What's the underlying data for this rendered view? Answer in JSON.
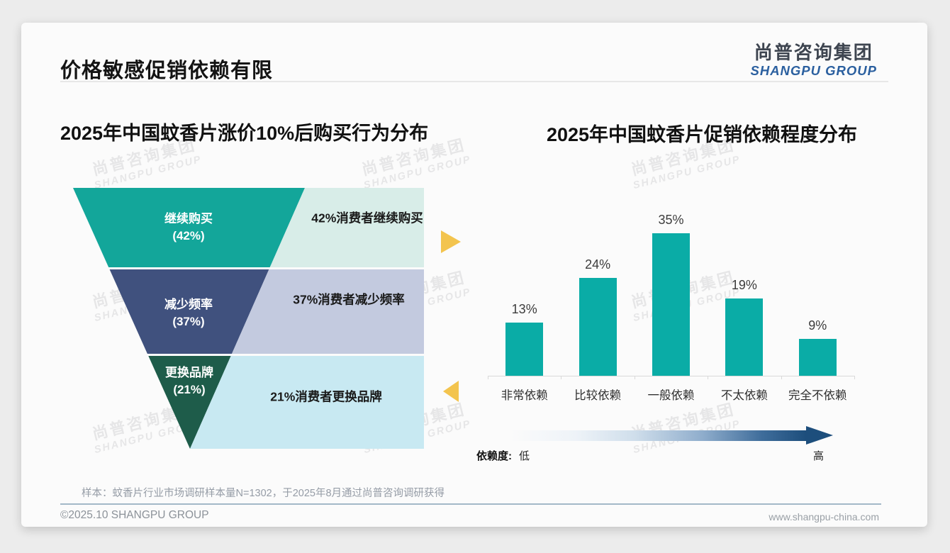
{
  "header": {
    "title": "价格敏感促销依赖有限"
  },
  "logo": {
    "line1": "尚普咨询集团",
    "line2": "SHANGPU GROUP"
  },
  "watermark": {
    "line1": "尚普咨询集团",
    "line2": "SHANGPU GROUP"
  },
  "left_chart": {
    "title": "2025年中国蚊香片涨价10%后购买行为分布",
    "chart_data": {
      "type": "funnel",
      "stages": [
        {
          "label": "继续购买",
          "value_label": "(42%)",
          "value": 42,
          "annotation": "42%消费者继续购买",
          "color": "#13a69a",
          "panel_color": "#d8ede8"
        },
        {
          "label": "减少频率",
          "value_label": "(37%)",
          "value": 37,
          "annotation": "37%消费者减少频率",
          "color": "#40517e",
          "panel_color": "#c3cadf"
        },
        {
          "label": "更换品牌",
          "value_label": "(21%)",
          "value": 21,
          "annotation": "21%消费者更换品牌",
          "color": "#1e5c4a",
          "panel_color": "#c8e9f2"
        }
      ],
      "accent_arrow_color": "#f3c44e"
    },
    "note": "样本：蚊香片行业市场调研样本量N=1302，于2025年8月通过尚普咨询调研获得"
  },
  "right_chart": {
    "title": "2025年中国蚊香片促销依赖程度分布",
    "chart_data": {
      "type": "bar",
      "categories": [
        "非常依赖",
        "比较依赖",
        "一般依赖",
        "不太依赖",
        "完全不依赖"
      ],
      "values": [
        13,
        24,
        35,
        19,
        9
      ],
      "value_labels": [
        "13%",
        "24%",
        "35%",
        "19%",
        "9%"
      ],
      "bar_color": "#0aaca6",
      "ylim": [
        0,
        40
      ],
      "grid": false,
      "legend": "none"
    },
    "scale": {
      "label": "依赖度:",
      "low": "低",
      "high": "高",
      "gradient_start": "#ffffff",
      "gradient_end": "#1d4e7c"
    }
  },
  "footer": {
    "copyright": "©2025.10 SHANGPU GROUP",
    "website": "www.shangpu-china.com"
  }
}
